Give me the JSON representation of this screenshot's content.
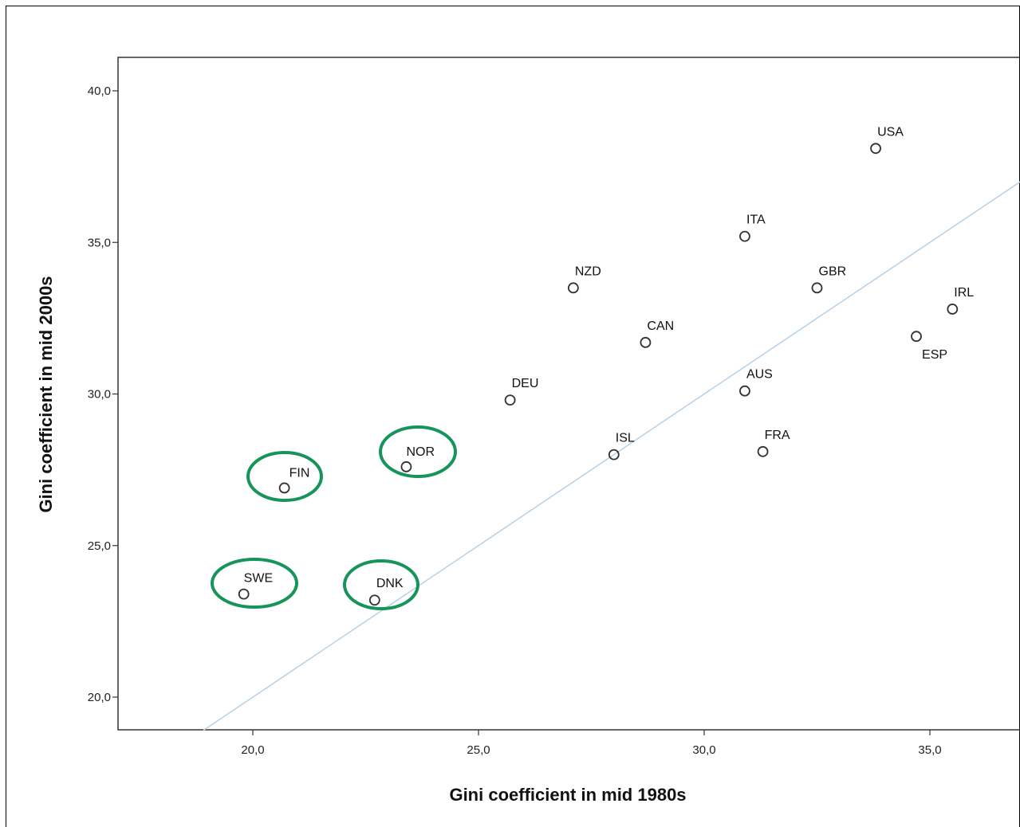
{
  "chart_data": {
    "type": "scatter",
    "title": "",
    "xlabel": "Gini coefficient in mid 1980s",
    "ylabel": "Gini coefficient in mid 2000s",
    "xlim": [
      17.0,
      37.0
    ],
    "ylim": [
      19.0,
      41.0
    ],
    "x_ticks": [
      {
        "value": 20,
        "label": "20,0"
      },
      {
        "value": 25,
        "label": "25,0"
      },
      {
        "value": 30,
        "label": "30,0"
      },
      {
        "value": 35,
        "label": "35,0"
      }
    ],
    "y_ticks": [
      {
        "value": 20,
        "label": "20,0"
      },
      {
        "value": 25,
        "label": "25,0"
      },
      {
        "value": 30,
        "label": "30,0"
      },
      {
        "value": 35,
        "label": "35,0"
      },
      {
        "value": 40,
        "label": "40,0"
      }
    ],
    "grid": false,
    "reference_line": "y = x",
    "points": [
      {
        "label": "USA",
        "x": 33.8,
        "y": 38.1,
        "highlighted": false
      },
      {
        "label": "ITA",
        "x": 30.9,
        "y": 35.2,
        "highlighted": false
      },
      {
        "label": "NZD",
        "x": 27.1,
        "y": 33.5,
        "highlighted": false
      },
      {
        "label": "GBR",
        "x": 32.5,
        "y": 33.5,
        "highlighted": false
      },
      {
        "label": "IRL",
        "x": 35.5,
        "y": 32.8,
        "highlighted": false
      },
      {
        "label": "ESP",
        "x": 34.7,
        "y": 31.9,
        "highlighted": false
      },
      {
        "label": "CAN",
        "x": 28.7,
        "y": 31.7,
        "highlighted": false
      },
      {
        "label": "AUS",
        "x": 30.9,
        "y": 30.1,
        "highlighted": false
      },
      {
        "label": "DEU",
        "x": 25.7,
        "y": 29.8,
        "highlighted": false
      },
      {
        "label": "ISL",
        "x": 28.0,
        "y": 28.0,
        "highlighted": false
      },
      {
        "label": "FRA",
        "x": 31.3,
        "y": 28.1,
        "highlighted": false
      },
      {
        "label": "NOR",
        "x": 23.4,
        "y": 27.6,
        "highlighted": true
      },
      {
        "label": "FIN",
        "x": 20.7,
        "y": 26.9,
        "highlighted": true
      },
      {
        "label": "SWE",
        "x": 19.8,
        "y": 23.4,
        "highlighted": true
      },
      {
        "label": "DNK",
        "x": 22.7,
        "y": 23.2,
        "highlighted": true
      }
    ]
  },
  "colors": {
    "marker_stroke": "#333333",
    "reference_line": "#b8d0e6",
    "highlight_ellipse": "#16945a",
    "axis": "#333333"
  }
}
